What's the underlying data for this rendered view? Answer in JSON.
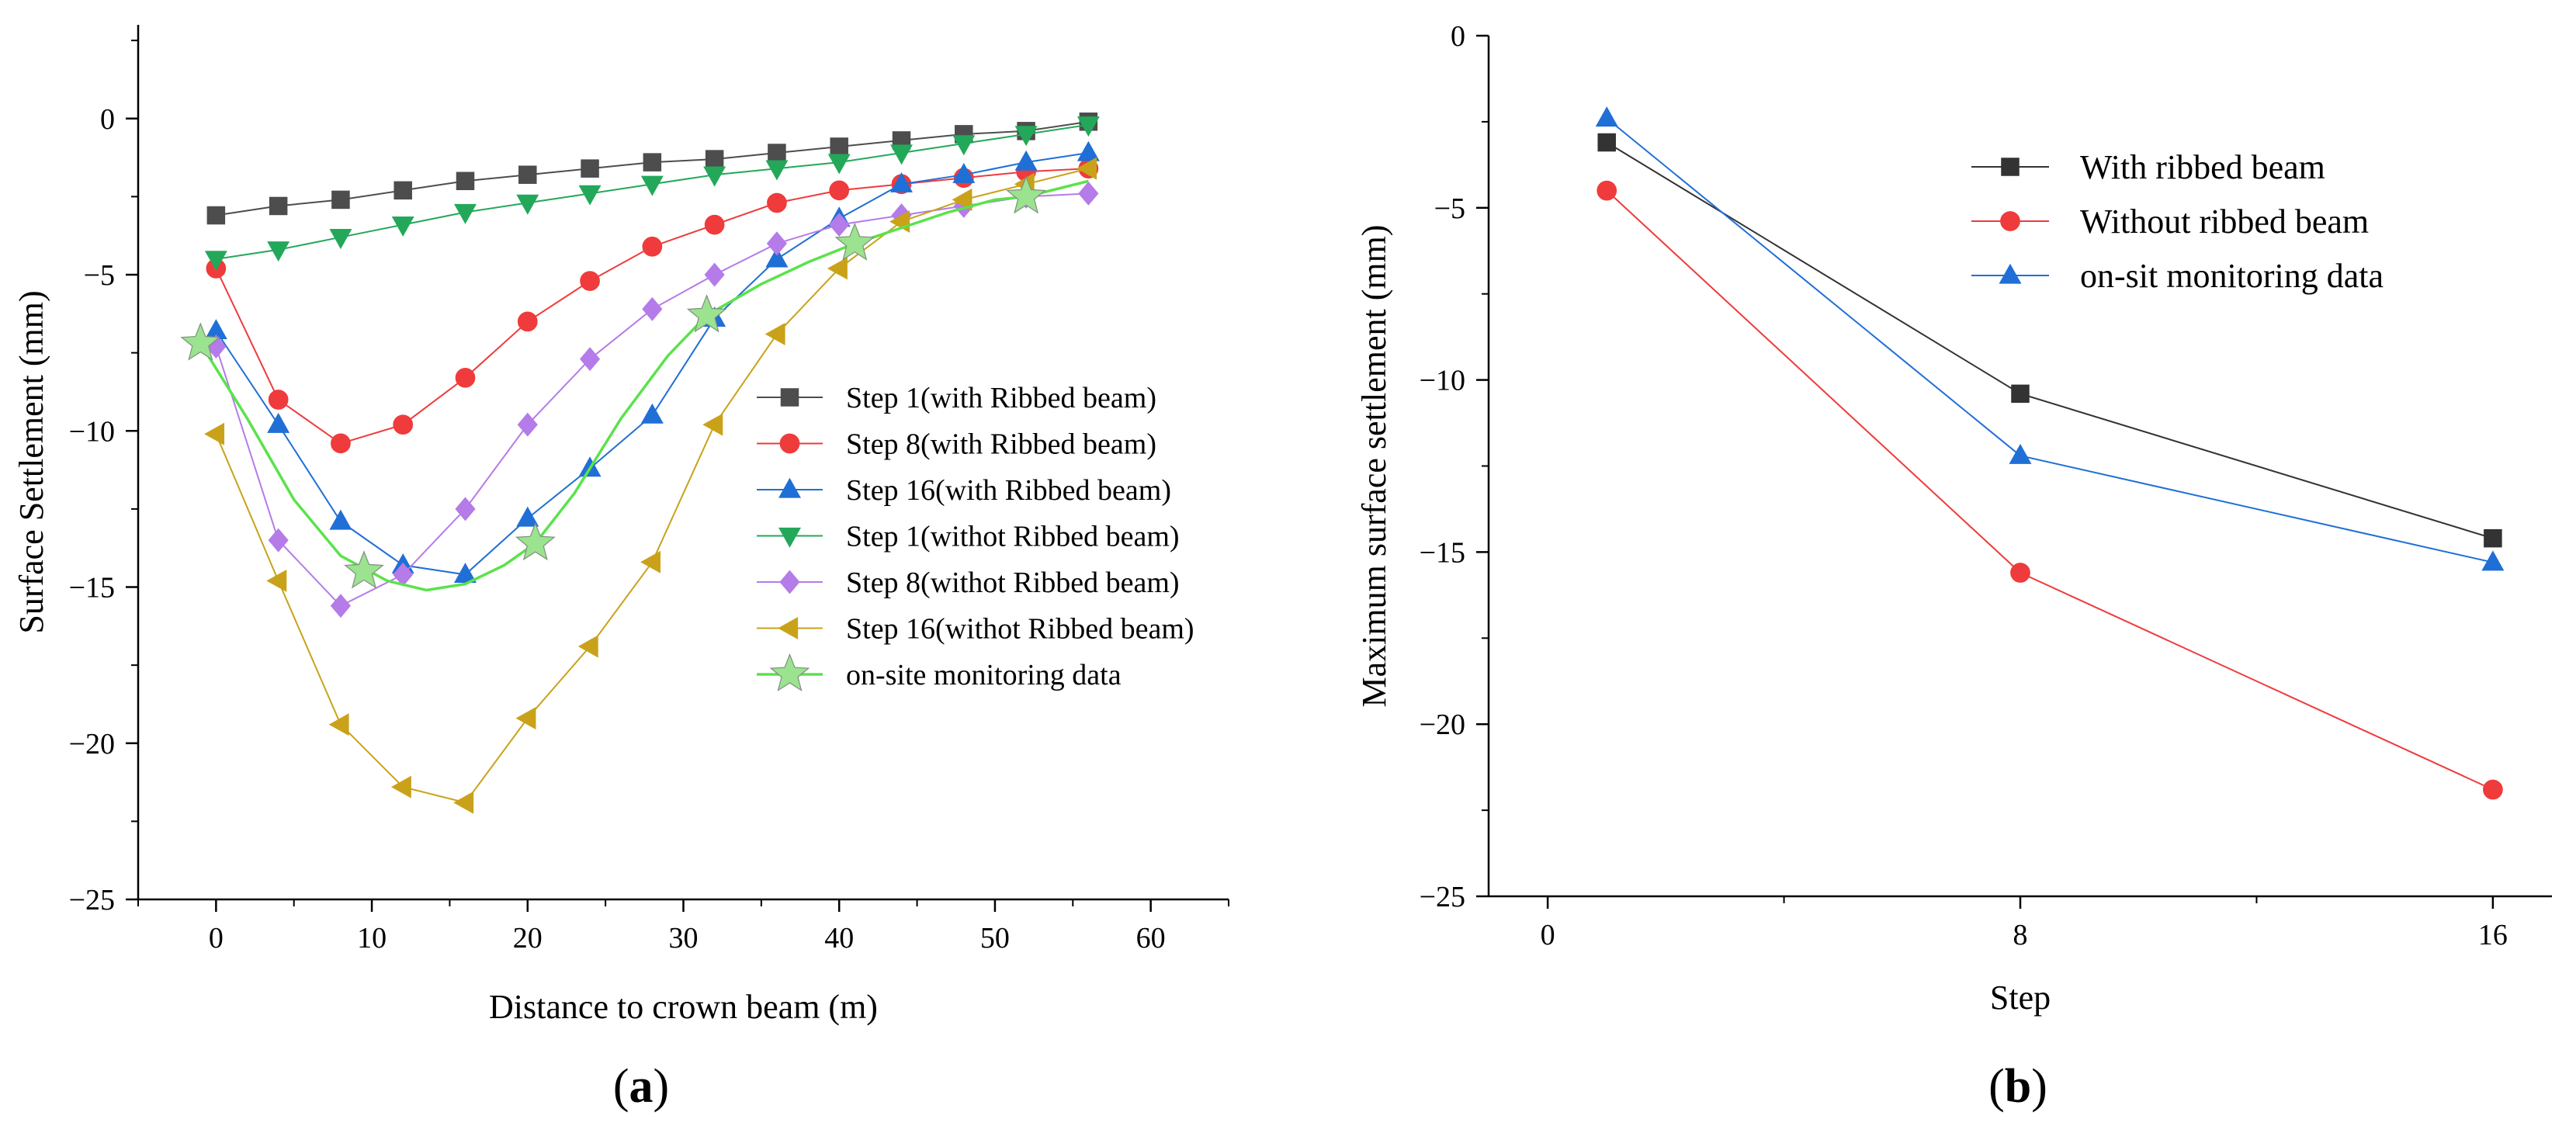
{
  "chart_data": [
    {
      "type": "line",
      "panel_label": "a",
      "title": "",
      "xlabel": "Distance to crown beam (m)",
      "ylabel": "Surface Settlement (mm)",
      "xlim": [
        -5,
        65
      ],
      "ylim": [
        -25,
        3
      ],
      "xticks": [
        0,
        10,
        20,
        30,
        40,
        50,
        60
      ],
      "yticks": [
        0,
        -5,
        -10,
        -15,
        -20,
        -25
      ],
      "legend_position": "center-right",
      "series": [
        {
          "name": "Step 1(with Ribbed beam)",
          "color": "#4d4d4d",
          "marker": "square",
          "x": [
            0,
            4,
            8,
            12,
            16,
            20,
            24,
            28,
            32,
            36,
            40,
            44,
            48,
            52,
            56
          ],
          "y": [
            -3.1,
            -2.8,
            -2.6,
            -2.3,
            -2.0,
            -1.8,
            -1.6,
            -1.4,
            -1.3,
            -1.1,
            -0.9,
            -0.7,
            -0.5,
            -0.4,
            -0.1
          ]
        },
        {
          "name": "Step 8(with Ribbed beam)",
          "color": "#ef3b3b",
          "marker": "circle",
          "x": [
            0,
            4,
            8,
            12,
            16,
            20,
            24,
            28,
            32,
            36,
            40,
            44,
            48,
            52,
            56
          ],
          "y": [
            -4.8,
            -9.0,
            -10.4,
            -9.8,
            -8.3,
            -6.5,
            -5.2,
            -4.1,
            -3.4,
            -2.7,
            -2.3,
            -2.1,
            -1.9,
            -1.7,
            -1.6
          ]
        },
        {
          "name": "Step 16(with Ribbed beam)",
          "color": "#1f6fd6",
          "marker": "triangle-up",
          "x": [
            0,
            4,
            8,
            12,
            16,
            20,
            24,
            28,
            32,
            36,
            40,
            44,
            48,
            52,
            56
          ],
          "y": [
            -6.8,
            -9.8,
            -12.9,
            -14.3,
            -14.6,
            -12.8,
            -11.2,
            -9.5,
            -6.4,
            -4.5,
            -3.2,
            -2.1,
            -1.8,
            -1.4,
            -1.1
          ]
        },
        {
          "name": "Step 1(withot Ribbed beam)",
          "color": "#23a85a",
          "marker": "triangle-down",
          "x": [
            0,
            4,
            8,
            12,
            16,
            20,
            24,
            28,
            32,
            36,
            40,
            44,
            48,
            52,
            56
          ],
          "y": [
            -4.5,
            -4.2,
            -3.8,
            -3.4,
            -3.0,
            -2.7,
            -2.4,
            -2.1,
            -1.8,
            -1.6,
            -1.4,
            -1.1,
            -0.8,
            -0.5,
            -0.2
          ]
        },
        {
          "name": "Step 8(withot Ribbed beam)",
          "color": "#b57be8",
          "marker": "diamond",
          "x": [
            0,
            4,
            8,
            12,
            16,
            20,
            24,
            28,
            32,
            36,
            40,
            44,
            48,
            52,
            56
          ],
          "y": [
            -7.3,
            -13.5,
            -15.6,
            -14.6,
            -12.5,
            -9.8,
            -7.7,
            -6.1,
            -5.0,
            -4.0,
            -3.4,
            -3.1,
            -2.8,
            -2.5,
            -2.4
          ]
        },
        {
          "name": "Step 16(withot Ribbed beam)",
          "color": "#c9a21a",
          "marker": "triangle-left",
          "x": [
            0,
            4,
            8,
            12,
            16,
            20,
            24,
            28,
            32,
            36,
            40,
            44,
            48,
            52,
            56
          ],
          "y": [
            -10.1,
            -14.8,
            -19.4,
            -21.4,
            -21.9,
            -19.2,
            -16.9,
            -14.2,
            -9.8,
            -6.9,
            -4.8,
            -3.3,
            -2.6,
            -2.1,
            -1.6
          ]
        },
        {
          "name": "on-site monitoring data",
          "color": "#5be24b",
          "marker": "star",
          "smooth": true,
          "marker_color": "#9be38f",
          "x": [
            -1,
            9.5,
            20.5,
            31.5,
            41,
            52
          ],
          "y": [
            -7.2,
            -14.5,
            -13.6,
            -6.3,
            -4.0,
            -2.5
          ],
          "curve_x": [
            -1,
            2,
            5,
            8,
            11,
            13.5,
            16,
            18.5,
            20.5,
            23,
            26,
            29,
            31.5,
            35,
            38,
            41,
            44,
            47,
            50,
            52,
            56
          ],
          "curve_y": [
            -7.2,
            -9.6,
            -12.2,
            -14.0,
            -14.8,
            -15.1,
            -14.9,
            -14.3,
            -13.6,
            -12.0,
            -9.6,
            -7.6,
            -6.3,
            -5.3,
            -4.6,
            -4.0,
            -3.5,
            -3.0,
            -2.6,
            -2.5,
            -2.0
          ]
        }
      ]
    },
    {
      "type": "line",
      "panel_label": "b",
      "title": "",
      "xlabel": "Step",
      "ylabel": "Maximum surface settlement (mm)",
      "xlim": [
        -1,
        17
      ],
      "ylim": [
        -25,
        0
      ],
      "xticks": [
        0,
        8,
        16
      ],
      "yticks": [
        0,
        -5,
        -10,
        -15,
        -20,
        -25
      ],
      "legend_position": "top-right",
      "series": [
        {
          "name": "With ribbed beam",
          "color": "#333333",
          "marker": "square",
          "x": [
            1,
            8,
            16
          ],
          "y": [
            -3.1,
            -10.4,
            -14.6
          ]
        },
        {
          "name": "Without ribbed beam",
          "color": "#ef3b3b",
          "marker": "circle",
          "x": [
            1,
            8,
            16
          ],
          "y": [
            -4.5,
            -15.6,
            -21.9
          ]
        },
        {
          "name": "on-sit monitoring data",
          "color": "#1f6fd6",
          "marker": "triangle-up",
          "x": [
            1,
            8,
            16
          ],
          "y": [
            -2.4,
            -12.2,
            -15.3
          ]
        }
      ]
    }
  ]
}
